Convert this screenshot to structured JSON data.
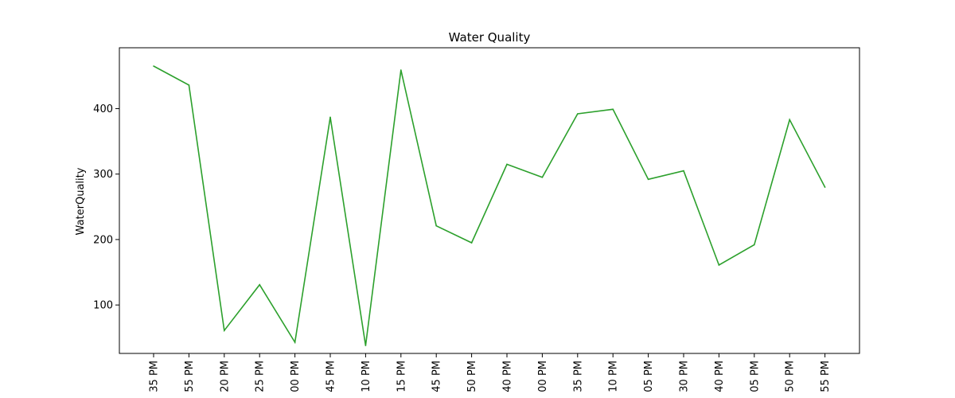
{
  "chart_data": {
    "type": "line",
    "title": "Water Quality",
    "xlabel": "",
    "ylabel": "WaterQuality",
    "categories": [
      "35 PM",
      "55 PM",
      "20 PM",
      "25 PM",
      "00 PM",
      "45 PM",
      "10 PM",
      "15 PM",
      "45 PM",
      "50 PM",
      "40 PM",
      "00 PM",
      "35 PM",
      "10 PM",
      "05 PM",
      "30 PM",
      "40 PM",
      "05 PM",
      "50 PM",
      "55 PM"
    ],
    "values": [
      465,
      436,
      61,
      131,
      43,
      387,
      38,
      459,
      221,
      195,
      315,
      295,
      392,
      399,
      292,
      305,
      161,
      192,
      383,
      280
    ],
    "ylim": [
      26,
      493
    ],
    "yticks": [
      100,
      200,
      300,
      400
    ],
    "line_color": "#2ca02c",
    "grid": false
  }
}
